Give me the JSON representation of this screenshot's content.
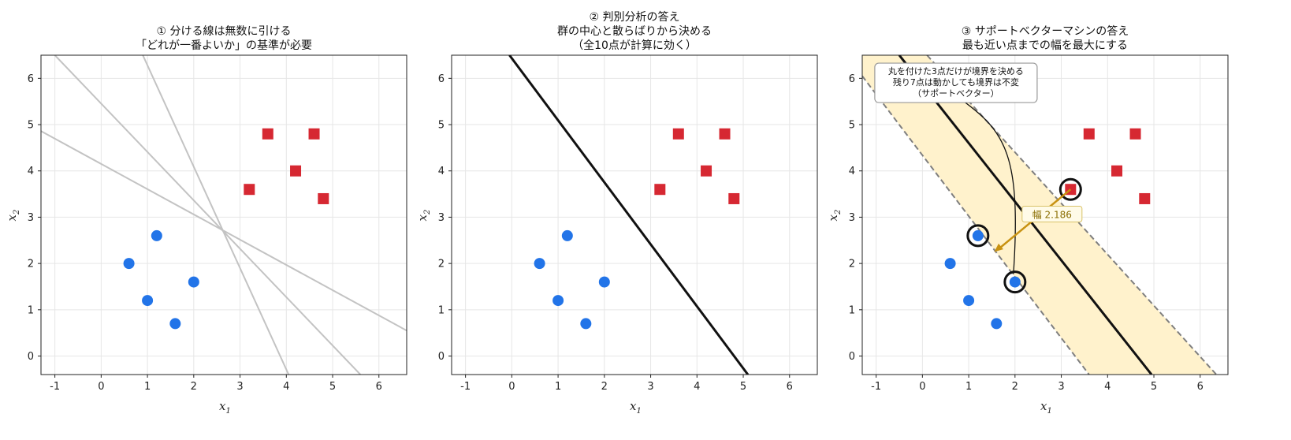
{
  "colors": {
    "blue": "#2274e8",
    "red": "#d62832",
    "line_gray": "#c3c3c3",
    "line_black": "#111111",
    "margin_fill": "#fff2cc",
    "margin_dash": "#7f7f7f",
    "arrow": "#c89212"
  },
  "chart_data": [
    {
      "type": "scatter",
      "title": [
        "① 分ける線は無数に引ける",
        "「どれが一番よいか」の基準が必要"
      ],
      "xlabel": "x1",
      "ylabel": "x2",
      "xlim": [
        -1.3,
        6.6
      ],
      "ylim": [
        -0.4,
        6.5
      ],
      "xticks": [
        "-1",
        "0",
        "1",
        "2",
        "3",
        "4",
        "5",
        "6"
      ],
      "yticks": [
        "0",
        "1",
        "2",
        "3",
        "4",
        "5",
        "6"
      ],
      "grid": true,
      "series": [
        {
          "marker": "circle",
          "color": "blue",
          "points": [
            [
              0.6,
              2.0
            ],
            [
              1.2,
              2.6
            ],
            [
              1.0,
              1.2
            ],
            [
              1.6,
              0.7
            ],
            [
              2.0,
              1.6
            ]
          ]
        },
        {
          "marker": "square",
          "color": "red",
          "points": [
            [
              3.6,
              4.8
            ],
            [
              4.6,
              4.8
            ],
            [
              4.2,
              4.0
            ],
            [
              3.2,
              3.6
            ],
            [
              4.8,
              3.4
            ]
          ]
        }
      ],
      "lines": [
        {
          "x1": -1.3,
          "y1": 4.86,
          "x2": 6.6,
          "y2": 0.55,
          "style": "gray"
        },
        {
          "x1": -1.0,
          "y1": 6.5,
          "x2": 5.6,
          "y2": -0.4,
          "style": "gray"
        },
        {
          "x1": 0.9,
          "y1": 6.5,
          "x2": 4.05,
          "y2": -0.4,
          "style": "gray"
        }
      ]
    },
    {
      "type": "scatter",
      "title": [
        "② 判別分析の答え",
        "群の中心と散らばりから決める",
        "（全10点が計算に効く）"
      ],
      "xlabel": "x1",
      "ylabel": "x2",
      "xlim": [
        -1.3,
        6.6
      ],
      "ylim": [
        -0.4,
        6.5
      ],
      "xticks": [
        "-1",
        "0",
        "1",
        "2",
        "3",
        "4",
        "5",
        "6"
      ],
      "yticks": [
        "0",
        "1",
        "2",
        "3",
        "4",
        "5",
        "6"
      ],
      "grid": true,
      "series": [
        {
          "marker": "circle",
          "color": "blue",
          "points": [
            [
              0.6,
              2.0
            ],
            [
              1.2,
              2.6
            ],
            [
              1.0,
              1.2
            ],
            [
              1.6,
              0.7
            ],
            [
              2.0,
              1.6
            ]
          ]
        },
        {
          "marker": "square",
          "color": "red",
          "points": [
            [
              3.6,
              4.8
            ],
            [
              4.6,
              4.8
            ],
            [
              4.2,
              4.0
            ],
            [
              3.2,
              3.6
            ],
            [
              4.8,
              3.4
            ]
          ]
        }
      ],
      "lines": [
        {
          "x1": -0.05,
          "y1": 6.5,
          "x2": 5.1,
          "y2": -0.4,
          "style": "black"
        }
      ]
    },
    {
      "type": "scatter",
      "title": [
        "③ サポートベクターマシンの答え",
        "最も近い点までの幅を最大にする"
      ],
      "xlabel": "x1",
      "ylabel": "x2",
      "xlim": [
        -1.3,
        6.6
      ],
      "ylim": [
        -0.4,
        6.5
      ],
      "xticks": [
        "-1",
        "0",
        "1",
        "2",
        "3",
        "4",
        "5",
        "6"
      ],
      "yticks": [
        "0",
        "1",
        "2",
        "3",
        "4",
        "5",
        "6"
      ],
      "grid": true,
      "series": [
        {
          "marker": "circle",
          "color": "blue",
          "points": [
            [
              0.6,
              2.0
            ],
            [
              1.2,
              2.6
            ],
            [
              1.0,
              1.2
            ],
            [
              1.6,
              0.7
            ],
            [
              2.0,
              1.6
            ]
          ]
        },
        {
          "marker": "square",
          "color": "red",
          "points": [
            [
              3.6,
              4.8
            ],
            [
              4.6,
              4.8
            ],
            [
              4.2,
              4.0
            ],
            [
              3.2,
              3.6
            ],
            [
              4.8,
              3.4
            ]
          ]
        }
      ],
      "margin_band": {
        "upper": [
          [
            0.1,
            6.5
          ],
          [
            6.35,
            -0.4
          ]
        ],
        "lower": [
          [
            -1.3,
            6.05
          ],
          [
            3.6,
            -0.4
          ]
        ]
      },
      "lines": [
        {
          "x1": -0.5,
          "y1": 6.5,
          "x2": 4.95,
          "y2": -0.4,
          "style": "black"
        }
      ],
      "support_vectors": [
        [
          1.2,
          2.6
        ],
        [
          2.0,
          1.6
        ],
        [
          3.2,
          3.6
        ]
      ],
      "margin_width_label": "幅 2.186",
      "margin_arrow": {
        "from": [
          3.2,
          3.6
        ],
        "to": [
          1.55,
          2.25
        ]
      },
      "annotation": {
        "lines": [
          "丸を付けた3点だけが境界を決める",
          "残り7点は動かしても境界は不変",
          "（サポートベクター）"
        ],
        "anchor": [
          0.35,
          5.9
        ],
        "curve_to": [
          2.0,
          1.6
        ]
      }
    }
  ]
}
